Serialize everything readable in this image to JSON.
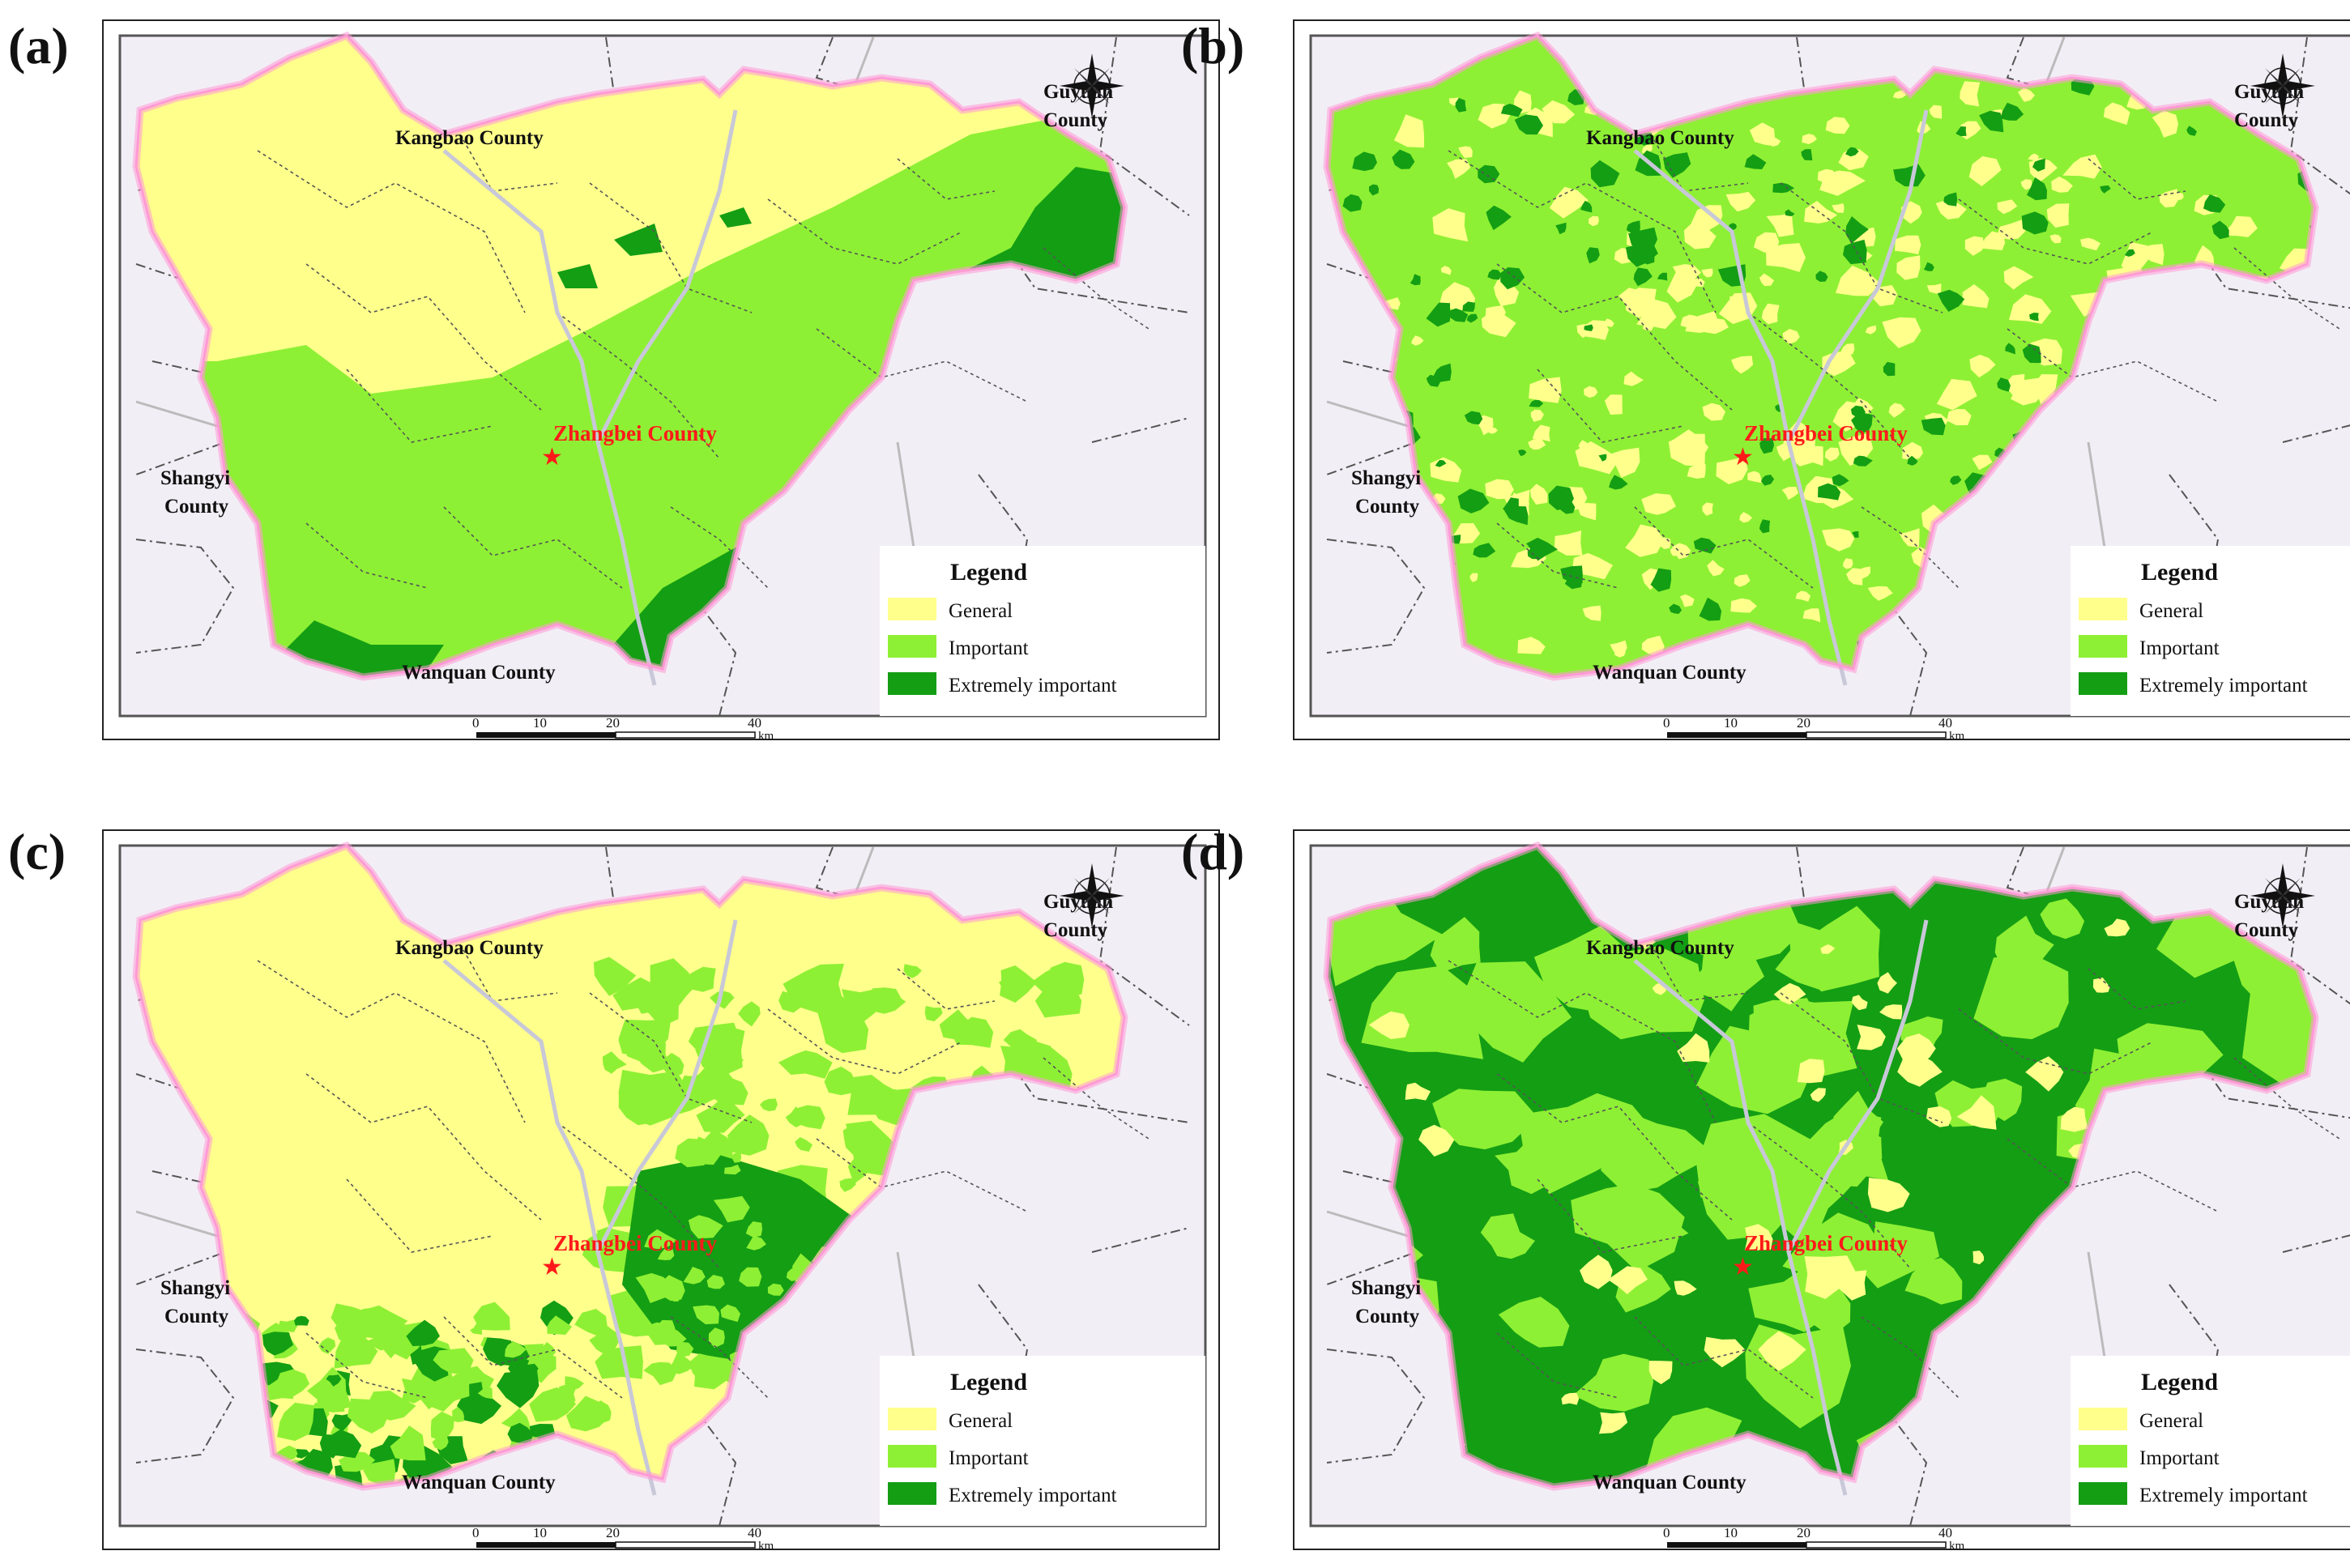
{
  "panels": [
    {
      "label": "(a)"
    },
    {
      "label": "(b)"
    },
    {
      "label": "(c)"
    },
    {
      "label": "(d)"
    }
  ],
  "map": {
    "center_label": "Zhangbei County",
    "neighbors": {
      "north": "Kangbao County",
      "northeast_line1": "Guyuan",
      "northeast_line2": "County",
      "west_line1": "Shangyi",
      "west_line2": "County",
      "south": "Wanquan County"
    }
  },
  "legend": {
    "title": "Legend",
    "items": [
      {
        "label": "General",
        "color": "#ffff8c"
      },
      {
        "label": "Important",
        "color": "#8ef034"
      },
      {
        "label": "Extremely important",
        "color": "#149e14"
      }
    ]
  },
  "scale_bar": {
    "ticks": [
      "0",
      "10",
      "20",
      "40"
    ],
    "unit": "km"
  },
  "colors": {
    "background": "#f2eef6",
    "boundary": "#ff9ad6",
    "marker": "#ff1a1a"
  }
}
